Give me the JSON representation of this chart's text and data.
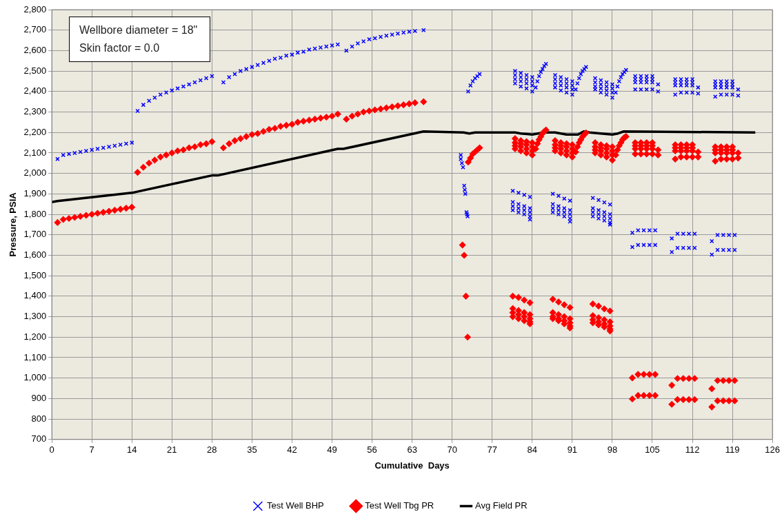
{
  "chart_data": {
    "type": "scatter",
    "xlabel": "Cumulative  Days",
    "ylabel": "Pressure, PSIA",
    "annotations": [
      "Wellbore diameter = 18\"",
      "Skin factor = 0.0"
    ],
    "xlim": [
      0,
      126
    ],
    "xticks": [
      0,
      7,
      14,
      21,
      28,
      35,
      42,
      49,
      56,
      63,
      70,
      77,
      84,
      91,
      98,
      105,
      112,
      119,
      126
    ],
    "ylim": [
      700,
      2800
    ],
    "yticks": [
      700,
      800,
      900,
      {
        "value": 1000,
        "label": "1,000"
      },
      {
        "value": 1100,
        "label": "1,100"
      },
      {
        "value": 1200,
        "label": "1,200"
      },
      {
        "value": 1300,
        "label": "1,300"
      },
      {
        "value": 1400,
        "label": "1,400"
      },
      {
        "value": 1500,
        "label": "1,500"
      },
      {
        "value": 1600,
        "label": "1,600"
      },
      {
        "value": 1700,
        "label": "1,700"
      },
      {
        "value": 1800,
        "label": "1,800"
      },
      {
        "value": 1900,
        "label": "1,900"
      },
      {
        "value": 2000,
        "label": "2,000"
      },
      {
        "value": 2100,
        "label": "2,100"
      },
      {
        "value": 2200,
        "label": "2,200"
      },
      {
        "value": 2300,
        "label": "2,300"
      },
      {
        "value": 2400,
        "label": "2,400"
      },
      {
        "value": 2500,
        "label": "2,500"
      },
      {
        "value": 2600,
        "label": "2,600"
      },
      {
        "value": 2700,
        "label": "2,700"
      },
      {
        "value": 2800,
        "label": "2,800"
      }
    ],
    "grid": true,
    "legend": "bottom",
    "series": [
      {
        "name": "Test Well BHP",
        "color": "#0000ff",
        "marker": "cross",
        "x": [
          1,
          2,
          3,
          4,
          5,
          6,
          7,
          8,
          9,
          10,
          11,
          12,
          13,
          14,
          15,
          16,
          17,
          18,
          19,
          20,
          21,
          22,
          23,
          24,
          25,
          26,
          27,
          28,
          30,
          31,
          32,
          33,
          34,
          35,
          36,
          37,
          38,
          39,
          40,
          41,
          42,
          43,
          44,
          45,
          46,
          47,
          48,
          49,
          50,
          51.5,
          52.5,
          53.5,
          54.5,
          55.5,
          56.5,
          57.5,
          58.5,
          59.5,
          60.5,
          61.5,
          62.5,
          63.5,
          65,
          71.5,
          71.5,
          71.7,
          71.9,
          72.1,
          72.2,
          72.3,
          72.5,
          72.6,
          72.7,
          72.8,
          73.2,
          73.6,
          74,
          74.4,
          74.8,
          81,
          81,
          81,
          81,
          82,
          82,
          82,
          82,
          83,
          83,
          83,
          83,
          84,
          84,
          84,
          84,
          84.6,
          84.9,
          85.2,
          85.5,
          85.8,
          86.1,
          86.4,
          88,
          88,
          88,
          88,
          89,
          89,
          89,
          89,
          90,
          90,
          90,
          90,
          91,
          91,
          91,
          91,
          91.6,
          91.9,
          92.2,
          92.5,
          92.8,
          93.1,
          93.4,
          95,
          95,
          95,
          95,
          96,
          96,
          96,
          96,
          97,
          97,
          97,
          97,
          98,
          98,
          98,
          98,
          98.6,
          98.9,
          99.2,
          99.5,
          99.8,
          100.1,
          100.4,
          102,
          102,
          102,
          102,
          103,
          103,
          103,
          103,
          104,
          104,
          104,
          104,
          105,
          105,
          105,
          105,
          106,
          106,
          109,
          109,
          109,
          109,
          110,
          110,
          110,
          110,
          111,
          111,
          111,
          111,
          112,
          112,
          112,
          112,
          113,
          113,
          116,
          116,
          116,
          116,
          117,
          117,
          117,
          117,
          118,
          118,
          118,
          118,
          119,
          119,
          119,
          119,
          120,
          120,
          80.6,
          81.6,
          82.6,
          83.6,
          80.6,
          80.6,
          80.6,
          81.6,
          81.6,
          81.6,
          82.6,
          82.6,
          82.6,
          83.6,
          83.6,
          83.6,
          83.6,
          87.6,
          88.6,
          89.6,
          90.6,
          87.6,
          87.6,
          87.6,
          88.6,
          88.6,
          88.6,
          89.6,
          89.6,
          89.6,
          90.6,
          90.6,
          90.6,
          90.6,
          94.6,
          95.6,
          96.6,
          97.6,
          94.6,
          94.6,
          94.6,
          95.6,
          95.6,
          95.6,
          96.6,
          96.6,
          96.6,
          97.6,
          97.6,
          97.6,
          97.6,
          101.5,
          101.5,
          102.5,
          102.5,
          103.5,
          103.5,
          104.5,
          104.5,
          105.5,
          105.5,
          108.4,
          108.4,
          109.4,
          109.4,
          110.4,
          110.4,
          111.4,
          111.4,
          112.4,
          112.4,
          115.4,
          115.4,
          116.4,
          116.4,
          117.4,
          117.4,
          118.4,
          118.4,
          119.4,
          119.4
        ],
        "values": [
          2070,
          2090,
          2095,
          2100,
          2105,
          2110,
          2115,
          2120,
          2125,
          2130,
          2135,
          2140,
          2145,
          2150,
          2305,
          2335,
          2355,
          2370,
          2385,
          2395,
          2405,
          2415,
          2425,
          2435,
          2445,
          2455,
          2465,
          2475,
          2445,
          2470,
          2485,
          2500,
          2510,
          2520,
          2530,
          2540,
          2550,
          2560,
          2565,
          2575,
          2580,
          2590,
          2595,
          2605,
          2610,
          2615,
          2620,
          2625,
          2630,
          2600,
          2620,
          2635,
          2645,
          2655,
          2660,
          2667,
          2673,
          2678,
          2683,
          2688,
          2692,
          2696,
          2700,
          2090,
          2070,
          2050,
          2030,
          1940,
          1920,
          1900,
          1810,
          1800,
          1790,
          2400,
          2430,
          2450,
          2465,
          2475,
          2485,
          2500,
          2480,
          2460,
          2440,
          2490,
          2470,
          2450,
          2425,
          2480,
          2460,
          2440,
          2415,
          2470,
          2450,
          2430,
          2400,
          2420,
          2450,
          2475,
          2495,
          2510,
          2525,
          2535,
          2480,
          2460,
          2440,
          2420,
          2470,
          2450,
          2430,
          2405,
          2460,
          2440,
          2420,
          2395,
          2450,
          2430,
          2410,
          2385,
          2410,
          2440,
          2465,
          2485,
          2500,
          2510,
          2520,
          2465,
          2445,
          2425,
          2410,
          2455,
          2435,
          2415,
          2395,
          2445,
          2425,
          2405,
          2385,
          2435,
          2415,
          2395,
          2370,
          2395,
          2425,
          2450,
          2470,
          2485,
          2495,
          2505,
          2475,
          2460,
          2445,
          2410,
          2475,
          2460,
          2445,
          2410,
          2475,
          2460,
          2445,
          2410,
          2475,
          2460,
          2445,
          2410,
          2435,
          2400,
          2460,
          2445,
          2430,
          2385,
          2460,
          2445,
          2430,
          2395,
          2460,
          2445,
          2430,
          2395,
          2460,
          2445,
          2430,
          2395,
          2420,
          2390,
          2450,
          2435,
          2420,
          2375,
          2450,
          2435,
          2420,
          2385,
          2450,
          2435,
          2420,
          2385,
          2450,
          2435,
          2420,
          2385,
          2410,
          2380,
          1915,
          1905,
          1895,
          1885,
          1860,
          1840,
          1820,
          1850,
          1830,
          1810,
          1840,
          1820,
          1800,
          1830,
          1810,
          1790,
          1775,
          1900,
          1890,
          1877,
          1867,
          1850,
          1830,
          1810,
          1840,
          1820,
          1800,
          1830,
          1810,
          1790,
          1820,
          1800,
          1780,
          1765,
          1880,
          1870,
          1858,
          1848,
          1830,
          1810,
          1790,
          1820,
          1800,
          1780,
          1810,
          1790,
          1770,
          1800,
          1780,
          1760,
          1750,
          1710,
          1640,
          1722,
          1650,
          1722,
          1650,
          1722,
          1650,
          1722,
          1650,
          1682,
          1616,
          1705,
          1636,
          1705,
          1636,
          1705,
          1636,
          1705,
          1636,
          1669,
          1603,
          1699,
          1626,
          1699,
          1626,
          1699,
          1626,
          1699,
          1626
        ]
      },
      {
        "name": "Test Well Tbg PR",
        "color": "#ff0000",
        "marker": "diamond",
        "x": [
          1,
          2,
          3,
          4,
          5,
          6,
          7,
          8,
          9,
          10,
          11,
          12,
          13,
          14,
          15,
          16,
          17,
          18,
          19,
          20,
          21,
          22,
          23,
          24,
          25,
          26,
          27,
          28,
          30,
          31,
          32,
          33,
          34,
          35,
          36,
          37,
          38,
          39,
          40,
          41,
          42,
          43,
          44,
          45,
          46,
          47,
          48,
          49,
          50,
          51.5,
          52.5,
          53.5,
          54.5,
          55.5,
          56.5,
          57.5,
          58.5,
          59.5,
          60.5,
          61.5,
          62.5,
          63.5,
          65,
          71.8,
          72.1,
          72.4,
          72.7,
          72.8,
          73.2,
          73.6,
          74,
          74.4,
          74.8,
          81,
          81,
          81,
          81,
          82,
          82,
          82,
          82,
          83,
          83,
          83,
          83,
          84,
          84,
          84,
          84,
          84.6,
          84.9,
          85.2,
          85.5,
          85.8,
          86.1,
          86.4,
          88,
          88,
          88,
          88,
          89,
          89,
          89,
          89,
          90,
          90,
          90,
          90,
          91,
          91,
          91,
          91,
          91.6,
          91.9,
          92.2,
          92.5,
          92.8,
          93.1,
          93.4,
          95,
          95,
          95,
          95,
          96,
          96,
          96,
          96,
          97,
          97,
          97,
          97,
          98,
          98,
          98,
          98,
          98.6,
          98.9,
          99.2,
          99.5,
          99.8,
          100.1,
          100.4,
          102,
          102,
          102,
          102,
          103,
          103,
          103,
          103,
          104,
          104,
          104,
          104,
          105,
          105,
          105,
          105,
          106,
          106,
          109,
          109,
          109,
          109,
          110,
          110,
          110,
          110,
          111,
          111,
          111,
          111,
          112,
          112,
          112,
          112,
          113,
          113,
          116,
          116,
          116,
          116,
          117,
          117,
          117,
          117,
          118,
          118,
          118,
          118,
          119,
          119,
          119,
          119,
          120,
          120,
          80.6,
          81.6,
          82.6,
          83.6,
          80.6,
          80.6,
          80.6,
          81.6,
          81.6,
          81.6,
          82.6,
          82.6,
          82.6,
          83.6,
          83.6,
          83.6,
          83.6,
          87.6,
          88.6,
          89.6,
          90.6,
          87.6,
          87.6,
          87.6,
          88.6,
          88.6,
          88.6,
          89.6,
          89.6,
          89.6,
          90.6,
          90.6,
          90.6,
          90.6,
          94.6,
          95.6,
          96.6,
          97.6,
          94.6,
          94.6,
          94.6,
          95.6,
          95.6,
          95.6,
          96.6,
          96.6,
          96.6,
          97.6,
          97.6,
          97.6,
          97.6,
          101.5,
          101.5,
          102.5,
          102.5,
          103.5,
          103.5,
          104.5,
          104.5,
          105.5,
          105.5,
          108.4,
          108.4,
          109.4,
          109.4,
          110.4,
          110.4,
          111.4,
          111.4,
          112.4,
          112.4,
          115.4,
          115.4,
          116.4,
          116.4,
          117.4,
          117.4,
          118.4,
          118.4,
          119.4,
          119.4
        ],
        "values": [
          1760,
          1775,
          1780,
          1785,
          1790,
          1795,
          1800,
          1805,
          1810,
          1815,
          1820,
          1825,
          1830,
          1835,
          2005,
          2030,
          2050,
          2065,
          2080,
          2090,
          2100,
          2110,
          2115,
          2125,
          2130,
          2140,
          2145,
          2155,
          2125,
          2145,
          2160,
          2170,
          2180,
          2190,
          2195,
          2205,
          2215,
          2220,
          2230,
          2235,
          2240,
          2250,
          2255,
          2260,
          2265,
          2270,
          2275,
          2280,
          2290,
          2265,
          2280,
          2290,
          2300,
          2305,
          2310,
          2315,
          2320,
          2325,
          2330,
          2335,
          2340,
          2345,
          2350,
          1650,
          1600,
          1400,
          1200,
          2055,
          2075,
          2095,
          2105,
          2115,
          2125,
          2170,
          2150,
          2135,
          2120,
          2160,
          2145,
          2130,
          2110,
          2155,
          2140,
          2120,
          2100,
          2150,
          2130,
          2110,
          2090,
          2120,
          2145,
          2165,
          2180,
          2195,
          2205,
          2212,
          2160,
          2140,
          2125,
          2110,
          2150,
          2135,
          2120,
          2100,
          2145,
          2130,
          2110,
          2090,
          2140,
          2120,
          2100,
          2080,
          2105,
          2130,
          2150,
          2165,
          2180,
          2190,
          2198,
          2150,
          2130,
          2115,
          2100,
          2140,
          2125,
          2110,
          2090,
          2135,
          2120,
          2100,
          2080,
          2130,
          2110,
          2090,
          2065,
          2090,
          2115,
          2135,
          2150,
          2165,
          2175,
          2180,
          2150,
          2135,
          2120,
          2095,
          2150,
          2135,
          2120,
          2095,
          2150,
          2135,
          2120,
          2095,
          2150,
          2135,
          2120,
          2095,
          2115,
          2090,
          2140,
          2125,
          2110,
          2070,
          2140,
          2125,
          2110,
          2080,
          2140,
          2125,
          2110,
          2080,
          2140,
          2125,
          2110,
          2080,
          2105,
          2080,
          2130,
          2115,
          2100,
          2060,
          2130,
          2115,
          2100,
          2070,
          2130,
          2115,
          2100,
          2070,
          2130,
          2115,
          2100,
          2070,
          2100,
          2075,
          1400,
          1394,
          1381,
          1368,
          1340,
          1320,
          1300,
          1330,
          1310,
          1290,
          1320,
          1300,
          1280,
          1310,
          1290,
          1275,
          1265,
          1385,
          1372,
          1358,
          1345,
          1320,
          1300,
          1290,
          1310,
          1290,
          1280,
          1300,
          1280,
          1265,
          1290,
          1270,
          1255,
          1245,
          1362,
          1352,
          1338,
          1328,
          1305,
          1285,
          1270,
          1295,
          1275,
          1260,
          1285,
          1265,
          1250,
          1275,
          1255,
          1240,
          1230,
          1001,
          898,
          1018,
          915,
          1018,
          915,
          1018,
          915,
          1018,
          915,
          965,
          872,
          998,
          895,
          998,
          895,
          998,
          895,
          998,
          895,
          948,
          859,
          988,
          889,
          988,
          889,
          988,
          889,
          988,
          889
        ]
      },
      {
        "name": "Avg Field PR",
        "type": "line",
        "color": "#000000",
        "marker": "none",
        "line_style": "solid",
        "x": [
          0,
          1,
          14,
          28,
          29,
          50,
          51,
          65,
          72,
          73,
          74,
          81,
          82,
          84,
          85,
          86,
          88,
          90,
          92,
          93,
          94,
          96,
          98,
          99,
          100,
          123
        ],
        "values": [
          1860,
          1865,
          1905,
          1990,
          1990,
          2120,
          2120,
          2205,
          2200,
          2195,
          2200,
          2200,
          2195,
          2190,
          2195,
          2200,
          2200,
          2190,
          2190,
          2205,
          2200,
          2195,
          2190,
          2195,
          2205,
          2200
        ]
      }
    ]
  }
}
